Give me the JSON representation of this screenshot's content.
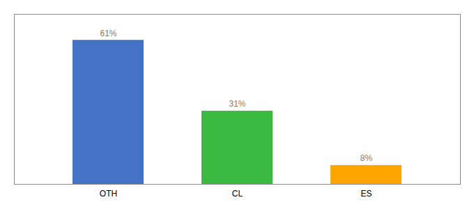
{
  "chart_data": {
    "type": "bar",
    "categories": [
      "OTH",
      "CL",
      "ES"
    ],
    "values": [
      61,
      31,
      8
    ],
    "value_labels": [
      "61%",
      "31%",
      "8%"
    ],
    "colors": [
      "#4472C4",
      "#3CB941",
      "#FFA500"
    ],
    "ylim": [
      0,
      72
    ],
    "data_labels": true,
    "tick_labels": "x",
    "grid": false
  }
}
